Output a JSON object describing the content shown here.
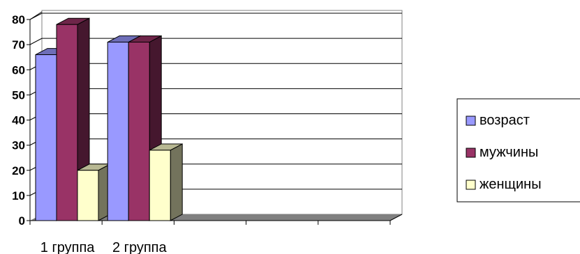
{
  "chart_data": {
    "type": "bar",
    "title": "",
    "xlabel": "",
    "ylabel": "",
    "categories": [
      "1 группа",
      "2 группа",
      "",
      "",
      ""
    ],
    "ylim": [
      0,
      80
    ],
    "yticks": [
      0,
      10,
      20,
      30,
      40,
      50,
      60,
      70,
      80
    ],
    "grid": true,
    "three_d": true,
    "legend_position": "right",
    "series": [
      {
        "name": "возраст",
        "values": [
          66,
          71,
          null,
          null,
          null
        ],
        "color": "#9999ff"
      },
      {
        "name": "мужчины",
        "values": [
          78,
          71,
          null,
          null,
          null
        ],
        "color": "#993366"
      },
      {
        "name": "женщины",
        "values": [
          20,
          28,
          null,
          null,
          null
        ],
        "color": "#ffffcc"
      }
    ]
  }
}
